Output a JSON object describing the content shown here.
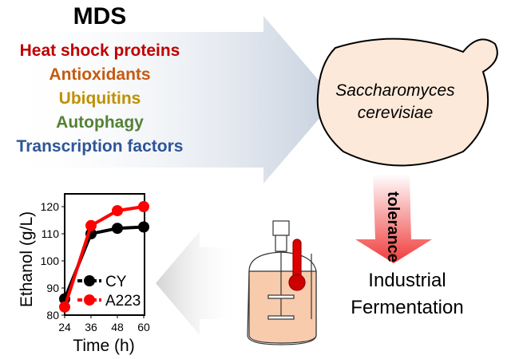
{
  "mds": {
    "title": "MDS",
    "items": [
      {
        "label": "Heat shock proteins",
        "color": "#c00000"
      },
      {
        "label": "Antioxidants",
        "color": "#c55a11"
      },
      {
        "label": "Ubiquitins",
        "color": "#bf9000"
      },
      {
        "label": "Autophagy",
        "color": "#548235"
      },
      {
        "label": "Transcription factors",
        "color": "#2f5597"
      }
    ]
  },
  "yeast": {
    "line1": "Saccharomyces",
    "line2": "cerevisiae"
  },
  "arrow_label": "tolerance",
  "fermentation": {
    "line1": "Industrial",
    "line2": "Fermentation"
  },
  "chart_data": {
    "type": "line",
    "xlabel": "Time (h)",
    "ylabel": "Ethanol (g/L)",
    "x": [
      24,
      36,
      48,
      60
    ],
    "xticks": [
      "24",
      "36",
      "48",
      "60"
    ],
    "yticks": [
      "80",
      "90",
      "100",
      "110",
      "120"
    ],
    "ylim": [
      80,
      125
    ],
    "series": [
      {
        "name": "CY",
        "color": "#000000",
        "values": [
          86,
          110,
          112,
          112.5
        ]
      },
      {
        "name": "A223",
        "color": "#ff0000",
        "values": [
          83,
          113,
          118.5,
          120
        ]
      }
    ],
    "legend": "lower-right"
  }
}
